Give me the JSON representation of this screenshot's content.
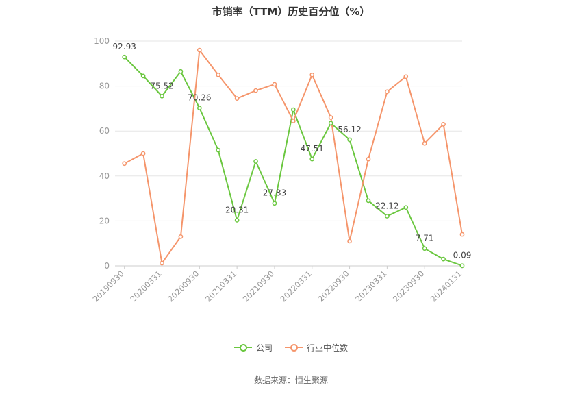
{
  "title": "市销率（TTM）历史百分位（%）",
  "source": "数据来源：恒生聚源",
  "colors": {
    "company": "#6ac73f",
    "industry": "#f5956b",
    "grid": "#e6e6e6",
    "axis_text": "#999999"
  },
  "chart_data": {
    "type": "line",
    "title": "市销率（TTM）历史百分位（%）",
    "ylim": [
      0,
      100
    ],
    "y_ticks": [
      0,
      20,
      40,
      60,
      80,
      100
    ],
    "x": [
      "20190930",
      "20191231",
      "20200331",
      "20200630",
      "20200930",
      "20201231",
      "20210331",
      "20210630",
      "20210930",
      "20211231",
      "20220331",
      "20220630",
      "20220930",
      "20221231",
      "20230331",
      "20230630",
      "20230930",
      "20231231",
      "20240131"
    ],
    "x_tick_labels": [
      "20190930",
      "20200331",
      "20200930",
      "20210331",
      "20210930",
      "20220331",
      "20220930",
      "20230331",
      "20230930",
      "20240131"
    ],
    "legend_position": "bottom",
    "series": [
      {
        "name": "公司",
        "color": "#6ac73f",
        "values": [
          92.93,
          84.5,
          75.52,
          86.5,
          70.26,
          51.5,
          20.31,
          46.5,
          27.83,
          69.5,
          47.51,
          63.5,
          56.12,
          29.0,
          22.12,
          26.0,
          7.71,
          3.0,
          0.09
        ],
        "labels": [
          "92.93",
          "",
          "75.52",
          "",
          "70.26",
          "",
          "20.31",
          "",
          "27.83",
          "",
          "47.51",
          "",
          "56.12",
          "",
          "22.12",
          "",
          "7.71",
          "",
          "0.09"
        ]
      },
      {
        "name": "行业中位数",
        "color": "#f5956b",
        "values": [
          45.5,
          50.0,
          1.2,
          13.0,
          96.0,
          85.0,
          74.5,
          78.0,
          80.8,
          64.5,
          85.0,
          66.0,
          11.0,
          47.5,
          77.5,
          84.2,
          54.5,
          63.0,
          14.0
        ]
      }
    ]
  }
}
